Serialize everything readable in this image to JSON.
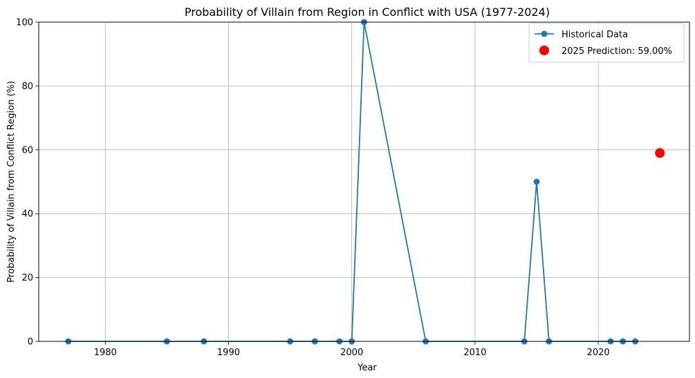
{
  "chart_data": {
    "type": "line",
    "title": "Probability of Villain from Region in Conflict with USA (1977-2024)",
    "xlabel": "Year",
    "ylabel": "Probability of Villain from Conflict Region (%)",
    "xlim": [
      1974.6,
      2027.4
    ],
    "ylim": [
      0,
      100
    ],
    "xticks": [
      1980,
      1990,
      2000,
      2010,
      2020
    ],
    "yticks": [
      0,
      20,
      40,
      60,
      80,
      100
    ],
    "grid": true,
    "legend_position": "top-right",
    "series": [
      {
        "name": "Historical Data",
        "color": "#1f77b4",
        "marker": "circle",
        "x": [
          1977,
          1985,
          1988,
          1995,
          1997,
          1999,
          2000,
          2001,
          2006,
          2014,
          2015,
          2016,
          2021,
          2022,
          2023
        ],
        "y": [
          0,
          0,
          0,
          0,
          0,
          0,
          0,
          100,
          0,
          0,
          50,
          0,
          0,
          0,
          0
        ]
      },
      {
        "name": "2025 Prediction: 59.00%",
        "color": "#ff0000",
        "marker": "circle-large",
        "x": [
          2025
        ],
        "y": [
          59
        ]
      }
    ]
  }
}
